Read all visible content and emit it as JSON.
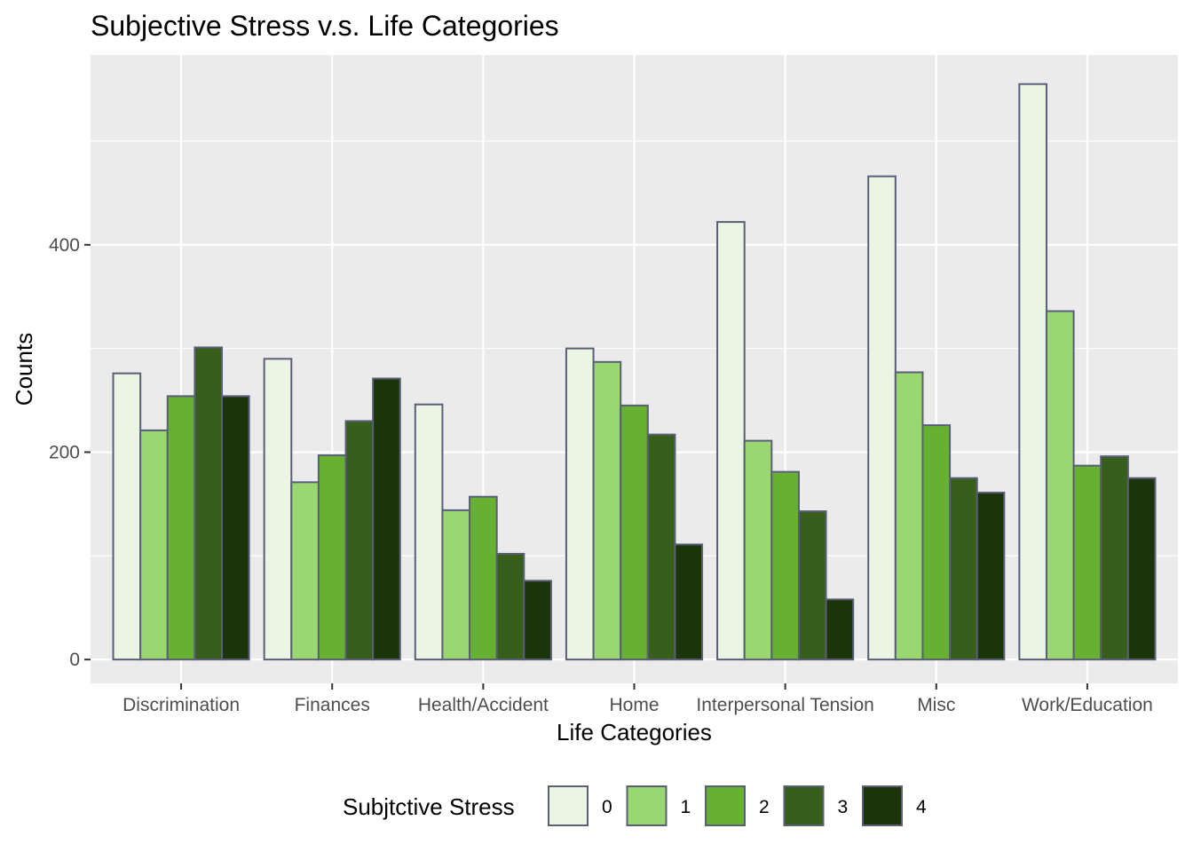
{
  "chart_data": {
    "type": "bar",
    "title": "Subjective Stress v.s. Life Categories",
    "xlabel": "Life Categories",
    "ylabel": "Counts",
    "ylim": [
      -23,
      583
    ],
    "yticks": [
      0,
      200,
      400
    ],
    "grid": true,
    "legend": {
      "title": "Subjtctive Stress",
      "position": "bottom"
    },
    "categories": [
      "Discrimination",
      "Finances",
      "Health/Accident",
      "Home",
      "Interpersonal Tension",
      "Misc",
      "Work/Education"
    ],
    "series": [
      {
        "name": "0",
        "color": "#eaf5e3",
        "values": [
          276,
          290,
          246,
          300,
          422,
          466,
          555
        ]
      },
      {
        "name": "1",
        "color": "#9bd770",
        "values": [
          221,
          171,
          144,
          287,
          211,
          277,
          336
        ]
      },
      {
        "name": "2",
        "color": "#66b032",
        "values": [
          254,
          197,
          157,
          245,
          181,
          226,
          187
        ]
      },
      {
        "name": "3",
        "color": "#375f1b",
        "values": [
          301,
          230,
          102,
          217,
          143,
          175,
          196
        ]
      },
      {
        "name": "4",
        "color": "#1b3409",
        "values": [
          254,
          271,
          76,
          111,
          58,
          161,
          175
        ]
      }
    ],
    "bar_outline_color": "#5a5f78",
    "panel_color": "#ebebeb",
    "grid_color": "#ffffff"
  }
}
